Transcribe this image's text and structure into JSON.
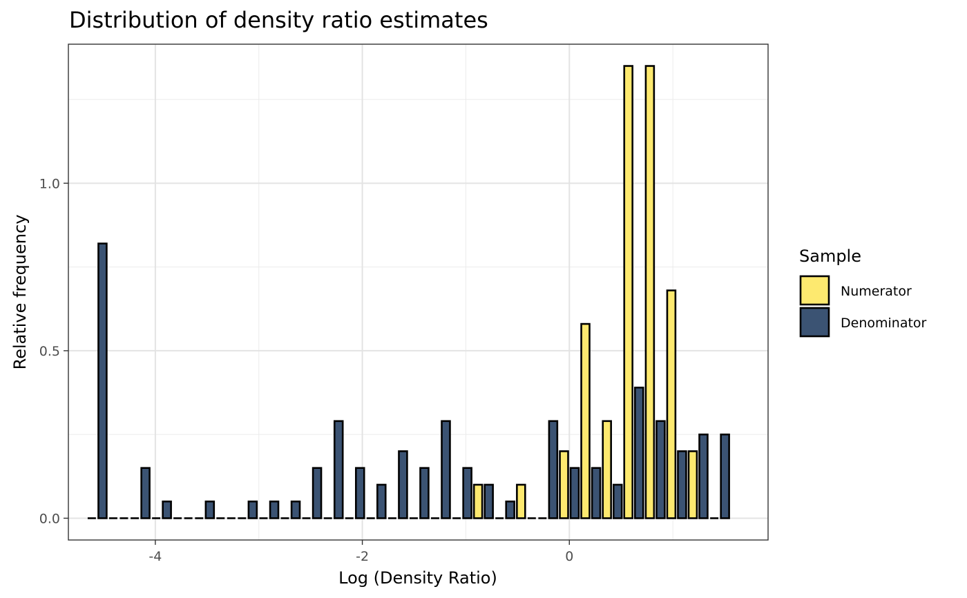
{
  "chart_data": {
    "type": "bar",
    "title": "Distribution of density ratio estimates",
    "xlabel": "Log (Density Ratio)",
    "ylabel": "Relative frequency",
    "xlim": [
      -4.84,
      1.92
    ],
    "ylim": [
      -0.065,
      1.415
    ],
    "x_ticks": [
      -4,
      -2,
      0
    ],
    "x_tick_labels": [
      "-4",
      "-2",
      "0"
    ],
    "y_ticks": [
      0.0,
      0.5,
      1.0
    ],
    "y_tick_labels": [
      "0.0",
      "0.5",
      "1.0"
    ],
    "bin_width": 0.2073,
    "bin_centers": [
      -4.562,
      -4.355,
      -4.147,
      -3.94,
      -3.733,
      -3.525,
      -3.318,
      -3.111,
      -2.903,
      -2.696,
      -2.489,
      -2.281,
      -2.074,
      -1.867,
      -1.659,
      -1.452,
      -1.245,
      -1.037,
      -0.83,
      -0.623,
      -0.415,
      -0.208,
      0.0,
      0.207,
      0.415,
      0.622,
      0.83,
      1.037,
      1.244,
      1.452
    ],
    "grid": true,
    "legend": {
      "title": "Sample",
      "position": "right"
    },
    "series": [
      {
        "name": "Numerator",
        "color": "#FDE96F",
        "values": [
          0,
          0,
          0,
          0,
          0,
          0,
          0,
          0,
          0,
          0,
          0,
          0,
          0,
          0,
          0,
          0,
          0,
          0,
          0.1,
          0,
          0.1,
          0,
          0.2,
          0.58,
          0.29,
          1.35,
          1.35,
          0.68,
          0.2,
          0
        ]
      },
      {
        "name": "Denominator",
        "color": "#3B5373",
        "values": [
          0.82,
          0,
          0.15,
          0.05,
          0,
          0.05,
          0,
          0.05,
          0.05,
          0.05,
          0.15,
          0.29,
          0.15,
          0.1,
          0.2,
          0.15,
          0.29,
          0.15,
          0.1,
          0.05,
          0,
          0.29,
          0.15,
          0.15,
          0.1,
          0.39,
          0.29,
          0.2,
          0.25,
          0.25
        ]
      }
    ]
  }
}
